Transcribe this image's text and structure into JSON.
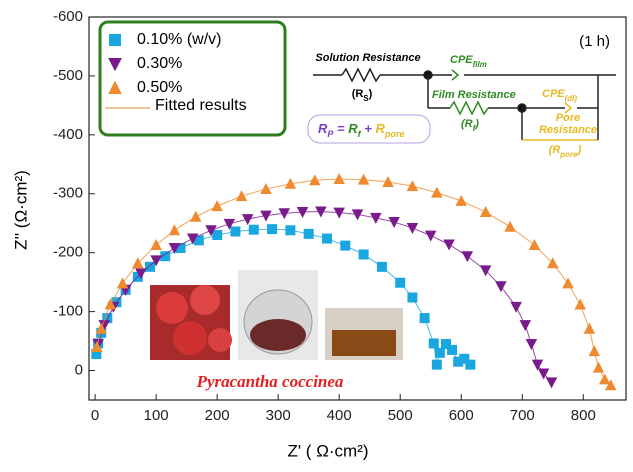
{
  "chart_data": {
    "type": "scatter",
    "y_label": "Z'' (Ω·cm²)",
    "x_label": "Z' ( Ω·cm²)",
    "xlim": [
      -10,
      870
    ],
    "ylim": [
      50,
      -600
    ],
    "xticks": [
      0,
      100,
      200,
      300,
      400,
      500,
      600,
      700,
      800
    ],
    "yticks": [
      -600,
      -500,
      -400,
      -300,
      -200,
      -100,
      0
    ],
    "legend": "upper left",
    "series": [
      {
        "name": "0.10% (w/v)",
        "color": "#1aa7e0",
        "marker": "square",
        "x": [
          2,
          5,
          10,
          20,
          35,
          50,
          70,
          90,
          115,
          140,
          170,
          200,
          230,
          260,
          290,
          320,
          350,
          380,
          410,
          440,
          470,
          500,
          520,
          540,
          555,
          560,
          565,
          575,
          585,
          595,
          605,
          615
        ],
        "values": [
          -28,
          -46,
          -64,
          -89,
          -116,
          -137,
          -159,
          -176,
          -194,
          -208,
          -221,
          -230,
          -236,
          -239,
          -240,
          -238,
          -232,
          -224,
          -212,
          -197,
          -176,
          -149,
          -124,
          -89,
          -46,
          -10,
          -30,
          -45,
          -35,
          -15,
          -20,
          -10
        ]
      },
      {
        "name": "0.30%",
        "color": "#7a1b8c",
        "marker": "triangle-down",
        "x": [
          5,
          15,
          30,
          50,
          75,
          100,
          130,
          160,
          190,
          220,
          250,
          280,
          310,
          340,
          370,
          400,
          430,
          460,
          490,
          520,
          550,
          580,
          610,
          640,
          665,
          690,
          705,
          715,
          725,
          735,
          748
        ],
        "values": [
          -45,
          -77,
          -108,
          -137,
          -165,
          -187,
          -208,
          -224,
          -238,
          -249,
          -257,
          -263,
          -267,
          -269,
          -270,
          -268,
          -265,
          -259,
          -252,
          -242,
          -229,
          -214,
          -194,
          -170,
          -143,
          -108,
          -77,
          -45,
          -10,
          5,
          20
        ]
      },
      {
        "name": "0.50%",
        "color": "#f08a30",
        "marker": "triangle-up",
        "x": [
          3,
          10,
          25,
          45,
          70,
          100,
          130,
          165,
          200,
          240,
          280,
          320,
          360,
          400,
          440,
          480,
          520,
          560,
          600,
          640,
          680,
          720,
          750,
          775,
          795,
          810,
          818,
          825,
          835,
          845
        ],
        "values": [
          -40,
          -71,
          -112,
          -148,
          -182,
          -213,
          -238,
          -261,
          -279,
          -296,
          -308,
          -317,
          -323,
          -325,
          -324,
          -320,
          -313,
          -302,
          -288,
          -269,
          -244,
          -213,
          -182,
          -148,
          -112,
          -71,
          -33,
          -5,
          15,
          25
        ]
      }
    ],
    "fit": {
      "name": "Fitted results",
      "color": "#e8a060"
    },
    "legend_border_color": "#2e7d1e",
    "annotations": {
      "time": "(1 h)",
      "solution_resistance": "Solution Resistance",
      "rs": {
        "text": "(R",
        "sub": "S",
        "tail": ")"
      },
      "cpe_film": {
        "text": "CPE",
        "sub": "film"
      },
      "film_resistance": "Film Resistance",
      "rf": {
        "text": "(R",
        "sub": "f",
        "tail": ")"
      },
      "cpe_dl": {
        "text": "CPE",
        "sub": "(dl)"
      },
      "pore_resistance_1": "Pore",
      "pore_resistance_2": "Resistance",
      "rpore": {
        "text": "(R",
        "sub": "pore",
        "tail": ")"
      },
      "equation": [
        {
          "text": "R",
          "sub": "P",
          "color": "#7a3fc0"
        },
        {
          "text": " = ",
          "sub": "",
          "color": "#7a3fc0"
        },
        {
          "text": "R",
          "sub": "f",
          "color": "#2e8b22"
        },
        {
          "text": " + ",
          "sub": "",
          "color": "#7a3fc0"
        },
        {
          "text": "R",
          "sub": "pore",
          "color": "#e8b820"
        }
      ],
      "species": "Pyracantha coccinea"
    }
  }
}
